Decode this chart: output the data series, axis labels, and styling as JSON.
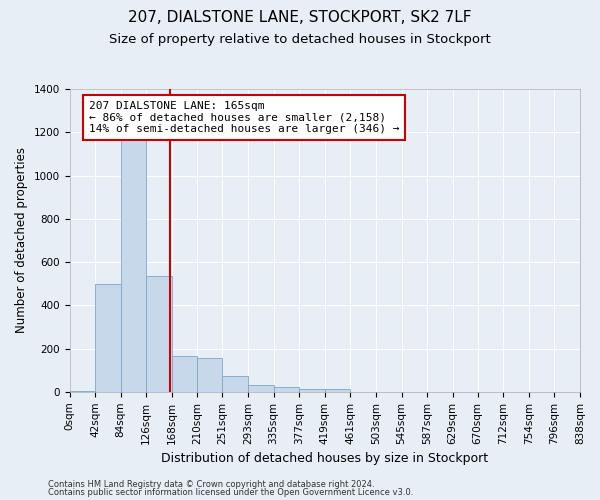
{
  "title": "207, DIALSTONE LANE, STOCKPORT, SK2 7LF",
  "subtitle": "Size of property relative to detached houses in Stockport",
  "xlabel": "Distribution of detached houses by size in Stockport",
  "ylabel": "Number of detached properties",
  "bin_edges": [
    0,
    42,
    84,
    126,
    168,
    210,
    251,
    293,
    335,
    377,
    419,
    461,
    503,
    545,
    587,
    629,
    670,
    712,
    754,
    796,
    838
  ],
  "bin_labels": [
    "0sqm",
    "42sqm",
    "84sqm",
    "126sqm",
    "168sqm",
    "210sqm",
    "251sqm",
    "293sqm",
    "335sqm",
    "377sqm",
    "419sqm",
    "461sqm",
    "503sqm",
    "545sqm",
    "587sqm",
    "629sqm",
    "670sqm",
    "712sqm",
    "754sqm",
    "796sqm",
    "838sqm"
  ],
  "bar_heights": [
    5,
    500,
    1200,
    535,
    165,
    155,
    75,
    30,
    20,
    15,
    12,
    0,
    0,
    0,
    0,
    0,
    0,
    0,
    0,
    0
  ],
  "bar_color": "#c8d8eb",
  "bar_edgecolor": "#7aa8c8",
  "vline_color": "#cc0000",
  "vline_x": 165,
  "annotation_line1": "207 DIALSTONE LANE: 165sqm",
  "annotation_line2": "← 86% of detached houses are smaller (2,158)",
  "annotation_line3": "14% of semi-detached houses are larger (346) →",
  "annotation_box_color": "#ffffff",
  "annotation_box_edgecolor": "#cc0000",
  "ylim": [
    0,
    1400
  ],
  "background_color": "#e8eef5",
  "plot_bg_color": "#e8eef5",
  "footer_line1": "Contains HM Land Registry data © Crown copyright and database right 2024.",
  "footer_line2": "Contains public sector information licensed under the Open Government Licence v3.0.",
  "title_fontsize": 11,
  "subtitle_fontsize": 9.5,
  "tick_fontsize": 7.5,
  "ylabel_fontsize": 8.5,
  "xlabel_fontsize": 9,
  "annotation_fontsize": 8,
  "footer_fontsize": 6
}
